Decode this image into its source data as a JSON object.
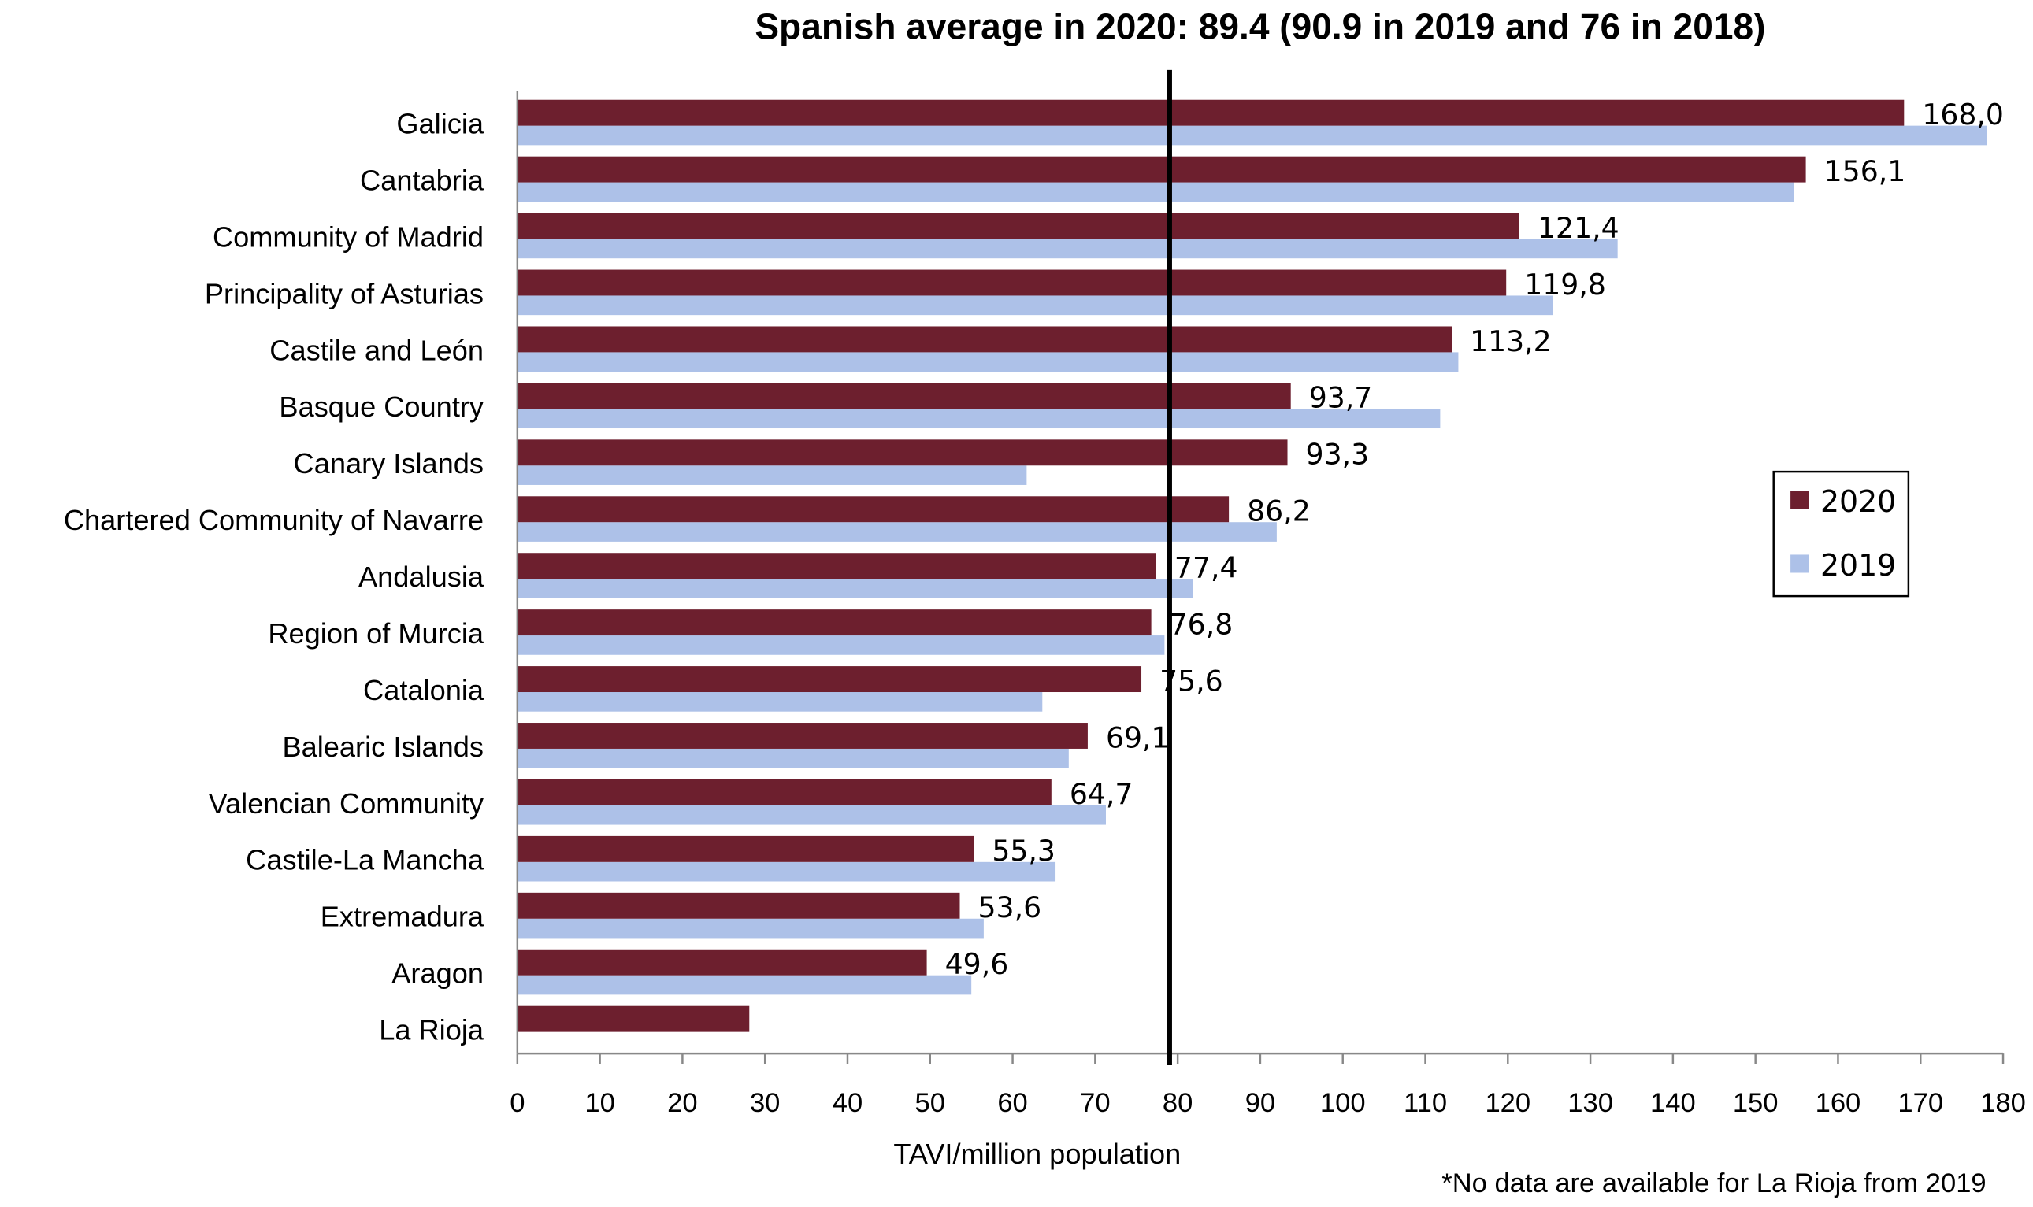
{
  "chart_data": {
    "type": "bar",
    "orientation": "horizontal",
    "title": "Spanish average in 2020: 89.4 (90.9 in 2019 and 76 in 2018)",
    "xlabel": "TAVI/million population",
    "footnote": "*No data are available for La Rioja from 2019",
    "xlim": [
      0,
      180
    ],
    "xticks": [
      "0",
      "10",
      "20",
      "30",
      "40",
      "50",
      "60",
      "70",
      "80",
      "90",
      "100",
      "110",
      "120",
      "130",
      "140",
      "150",
      "160",
      "170",
      "180"
    ],
    "reference_line": 79,
    "grid": false,
    "legend_position": "right",
    "categories": [
      "Galicia",
      "Cantabria",
      "Community of Madrid",
      "Principality of Asturias",
      "Castile and León",
      "Basque Country",
      "Canary Islands",
      "Chartered Community of Navarre",
      "Andalusia",
      "Region of Murcia",
      "Catalonia",
      "Balearic Islands",
      "Valencian Community",
      "Castile-La Mancha",
      "Extremadura",
      "Aragon",
      "La Rioja"
    ],
    "series": [
      {
        "name": "2020",
        "color": "#6d1f2e",
        "values": [
          168.0,
          156.1,
          121.4,
          119.8,
          113.2,
          93.7,
          93.3,
          86.2,
          77.4,
          76.8,
          75.6,
          69.1,
          64.7,
          55.3,
          53.6,
          49.6,
          28.1
        ],
        "labels": [
          "168,0",
          "156,1",
          "121,4",
          "119,8",
          "113,2",
          "93,7",
          "93,3",
          "86,2",
          "77,4",
          "76,8",
          "75,6",
          "69,1",
          "64,7",
          "55,3",
          "53,6",
          "49,6",
          ""
        ]
      },
      {
        "name": "2019",
        "color": "#adc1e8",
        "values": [
          178,
          154.7,
          133.3,
          125.5,
          114,
          111.8,
          61.7,
          92,
          81.8,
          78.4,
          63.6,
          66.8,
          71.3,
          65.2,
          56.5,
          55,
          null
        ]
      }
    ]
  }
}
